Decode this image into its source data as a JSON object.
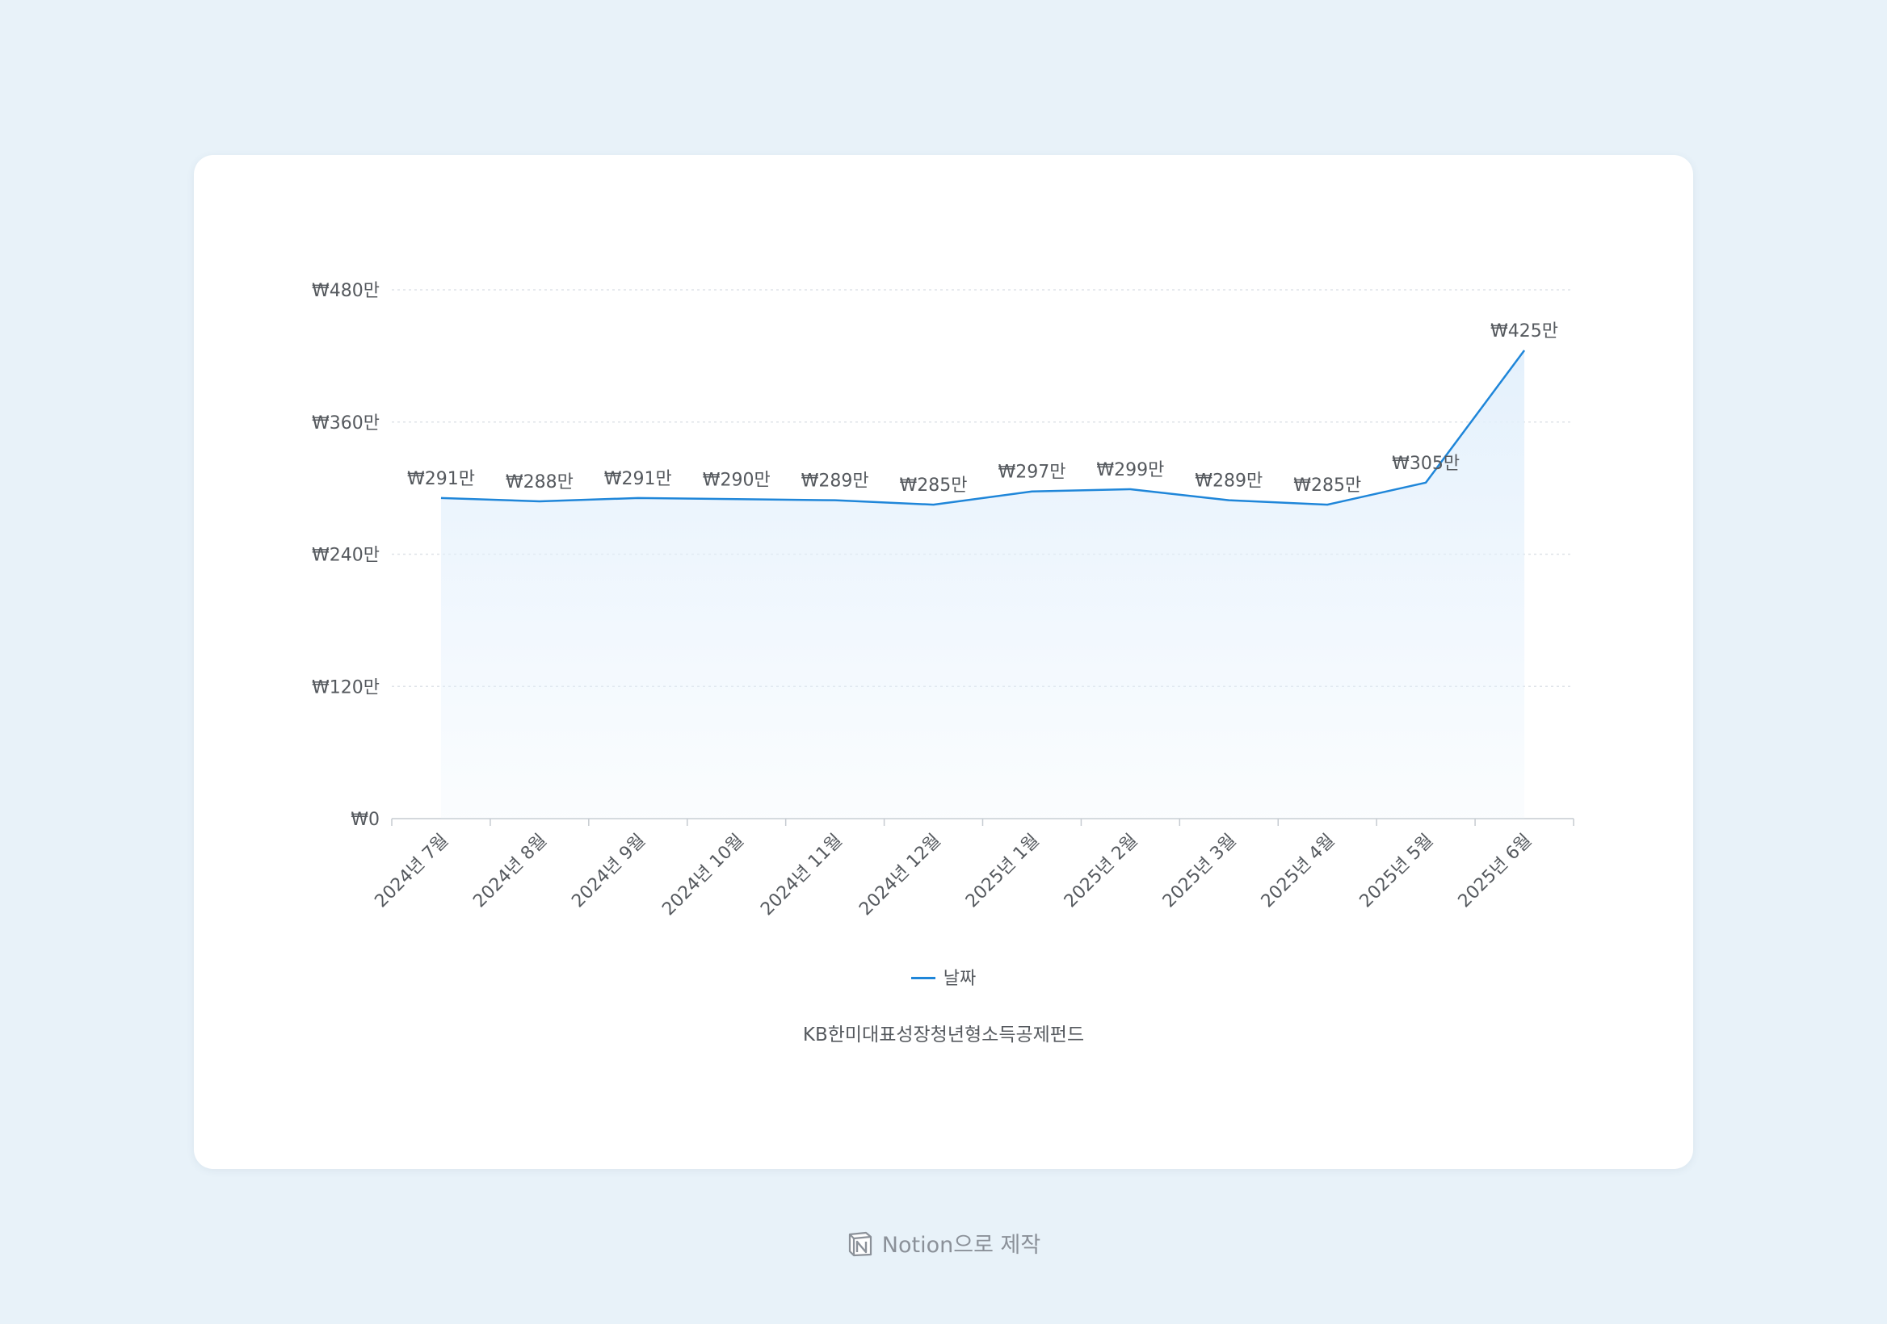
{
  "chart_data": {
    "type": "area",
    "categories": [
      "2024년 7월",
      "2024년 8월",
      "2024년 9월",
      "2024년 10월",
      "2024년 11월",
      "2024년 12월",
      "2025년 1월",
      "2025년 2월",
      "2025년 3월",
      "2025년 4월",
      "2025년 5월",
      "2025년 6월"
    ],
    "series": [
      {
        "name": "날짜",
        "values": [
          2910000,
          2880000,
          2910000,
          2900000,
          2890000,
          2850000,
          2970000,
          2990000,
          2890000,
          2850000,
          3050000,
          4250000
        ],
        "data_labels": [
          "₩291만",
          "₩288만",
          "₩291만",
          "₩290만",
          "₩289만",
          "₩285만",
          "₩297만",
          "₩299만",
          "₩289만",
          "₩285만",
          "₩305만",
          "₩425만"
        ]
      }
    ],
    "ylim": [
      0,
      4800000
    ],
    "yticks": [
      0,
      1200000,
      2400000,
      3600000,
      4800000
    ],
    "ytick_labels": [
      "₩0",
      "₩120만",
      "₩240만",
      "₩360만",
      "₩480만"
    ],
    "grid": true,
    "legend_position": "bottom",
    "line_color": "#1f86d9",
    "fill_color": "#e3f0fc",
    "caption": "KB한미대표성장청년형소득공제펀드"
  },
  "legend": {
    "label": "날짜"
  },
  "caption": "KB한미대표성장청년형소득공제펀드",
  "footer": {
    "text": "Notion으로 제작",
    "icon": "notion-logo-icon"
  }
}
